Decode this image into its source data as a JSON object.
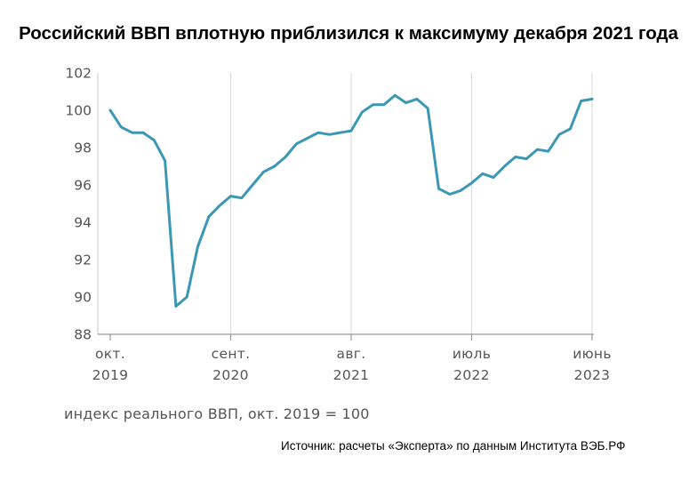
{
  "chart_data": {
    "type": "line",
    "title": "Российский ВВП вплотную приблизился к максимуму декабря 2021 года",
    "note": "индекс реального ВВП, окт. 2019 = 100",
    "source": "Источник: расчеты «Эксперта» по данным Института ВЭБ.РФ",
    "ylim": [
      88,
      102
    ],
    "yticks": [
      88,
      90,
      92,
      94,
      96,
      98,
      100,
      102
    ],
    "x_tick_labels": [
      {
        "month": "окт.",
        "year": "2019",
        "index": 0
      },
      {
        "month": "сент.",
        "year": "2020",
        "index": 11
      },
      {
        "month": "авг.",
        "year": "2021",
        "index": 22
      },
      {
        "month": "июль",
        "year": "2022",
        "index": 33
      },
      {
        "month": "июнь",
        "year": "2023",
        "index": 44
      }
    ],
    "grid": "vertical",
    "color": "#3b97b4",
    "series": [
      {
        "values": [
          100.0,
          99.1,
          98.8,
          98.8,
          98.4,
          97.3,
          89.5,
          90.0,
          92.7,
          94.3,
          94.9,
          95.4,
          95.3,
          96.0,
          96.7,
          97.0,
          97.5,
          98.2,
          98.5,
          98.8,
          98.7,
          98.8,
          98.9,
          99.9,
          100.3,
          100.3,
          100.8,
          100.4,
          100.6,
          100.1,
          95.8,
          95.5,
          95.7,
          96.1,
          96.6,
          96.4,
          97.0,
          97.5,
          97.4,
          97.9,
          97.8,
          98.7,
          99.0,
          100.5,
          100.6
        ]
      }
    ]
  }
}
